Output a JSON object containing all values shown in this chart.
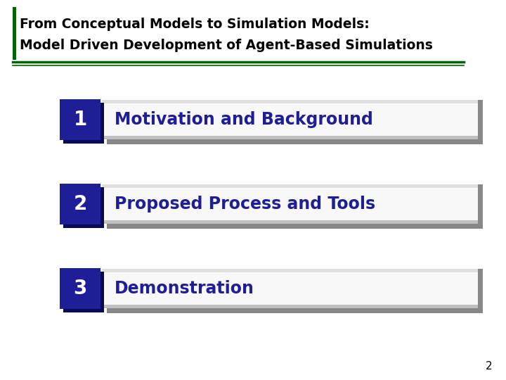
{
  "title_line1": "From Conceptual Models to Simulation Models:",
  "title_line2": "Model Driven Development of Agent-Based Simulations",
  "title_color": "#000000",
  "title_fontsize": 13.5,
  "title_bar_color": "#006400",
  "background_color": "#ffffff",
  "items": [
    {
      "number": "1",
      "text": "Motivation and Background"
    },
    {
      "number": "2",
      "text": "Proposed Process and Tools"
    },
    {
      "number": "3",
      "text": "Demonstration"
    }
  ],
  "box_color": "#1e1e96",
  "box_shadow_color": "#0a0a50",
  "box_text_color": "#ffffff",
  "item_text_color": "#1e1e96",
  "item_bar_light": "#ffffff",
  "item_bar_dark": "#b0b0b0",
  "item_bar_shadow": "#888888",
  "item_fontsize": 17,
  "number_fontsize": 20,
  "page_number": "2",
  "page_number_color": "#000000",
  "page_number_fontsize": 11
}
